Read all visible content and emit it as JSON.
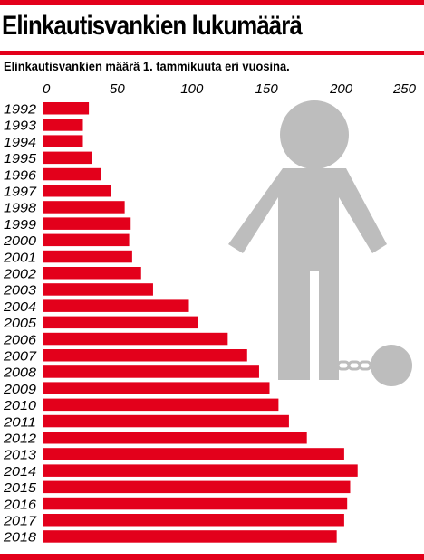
{
  "header": {
    "title": "Elinkautisvankien lukumäärä",
    "subtitle": "Elinkautisvankien määrä 1. tammikuuta eri vuosina."
  },
  "colors": {
    "accent": "#e3001b",
    "bar": "#e3001b",
    "figure": "#bdbdbd"
  },
  "illustration": {
    "icon": "prisoner-with-ball-and-chain-icon"
  },
  "chart_data": {
    "type": "bar",
    "orientation": "horizontal",
    "categories": [
      "1992",
      "1993",
      "1994",
      "1995",
      "1996",
      "1997",
      "1998",
      "1999",
      "2000",
      "2001",
      "2002",
      "2003",
      "2004",
      "2005",
      "2006",
      "2007",
      "2008",
      "2009",
      "2010",
      "2011",
      "2012",
      "2013",
      "2014",
      "2015",
      "2016",
      "2017",
      "2018"
    ],
    "values": [
      31,
      27,
      27,
      33,
      39,
      46,
      55,
      59,
      58,
      60,
      66,
      74,
      98,
      104,
      124,
      137,
      145,
      152,
      158,
      165,
      177,
      202,
      211,
      206,
      204,
      202,
      197
    ],
    "title": "Elinkautisvankien lukumäärä",
    "subtitle": "Elinkautisvankien määrä 1. tammikuuta eri vuosina.",
    "xlim": [
      0,
      250
    ],
    "xticks": [
      0,
      50,
      100,
      150,
      200,
      250
    ],
    "tick_position": "top",
    "grid": false,
    "legend": "none"
  }
}
